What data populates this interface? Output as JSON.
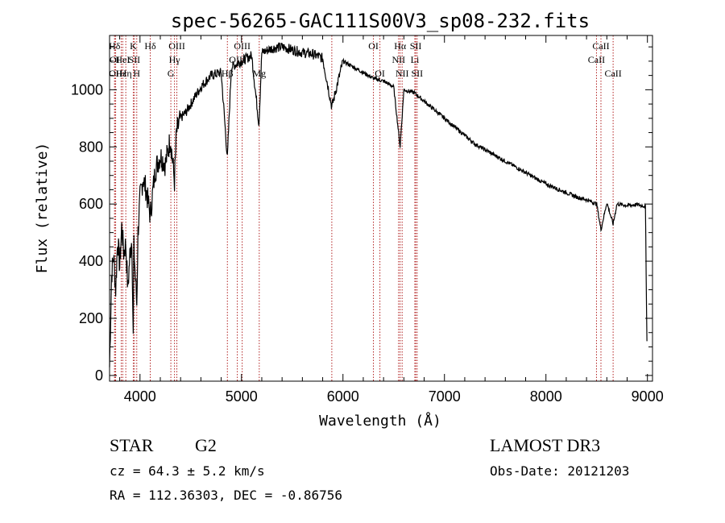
{
  "chart_data": {
    "type": "line",
    "title": "spec-56265-GAC111S00V3_sp08-232.fits",
    "xlabel": "Wavelength (Å)",
    "ylabel": "Flux (relative)",
    "xlim": [
      3700,
      9050
    ],
    "ylim": [
      -20,
      1190
    ],
    "xticks": [
      4000,
      5000,
      6000,
      7000,
      8000,
      9000
    ],
    "yticks": [
      0,
      200,
      400,
      600,
      800,
      1000
    ],
    "xtick_labels": [
      "4000",
      "5000",
      "6000",
      "7000",
      "8000",
      "9000"
    ],
    "ytick_labels": [
      "0",
      "200",
      "400",
      "600",
      "800",
      "1000"
    ],
    "line_color": "#000000",
    "marker_color": "#b22222",
    "spectrum": {
      "wavelength": [
        3700,
        3720,
        3740,
        3760,
        3780,
        3800,
        3820,
        3840,
        3860,
        3880,
        3900,
        3920,
        3933,
        3940,
        3968,
        3980,
        4000,
        4030,
        4060,
        4101,
        4150,
        4200,
        4250,
        4300,
        4340,
        4360,
        4400,
        4450,
        4500,
        4600,
        4700,
        4800,
        4861,
        4900,
        5000,
        5100,
        5172,
        5200,
        5300,
        5400,
        5500,
        5600,
        5700,
        5800,
        5890,
        6000,
        6100,
        6200,
        6300,
        6400,
        6500,
        6563,
        6600,
        6700,
        6800,
        6900,
        7000,
        7100,
        7200,
        7300,
        7400,
        7500,
        7600,
        7700,
        7800,
        7900,
        8000,
        8100,
        8200,
        8300,
        8400,
        8500,
        8542,
        8600,
        8662,
        8700,
        8800,
        8900,
        8980,
        8995
      ],
      "flux": [
        30,
        350,
        420,
        300,
        480,
        380,
        520,
        430,
        460,
        300,
        420,
        480,
        130,
        450,
        250,
        500,
        620,
        690,
        650,
        560,
        720,
        770,
        740,
        830,
        680,
        850,
        900,
        920,
        950,
        1010,
        1050,
        1060,
        760,
        1080,
        1100,
        1120,
        880,
        1130,
        1145,
        1150,
        1140,
        1130,
        1125,
        1110,
        940,
        1100,
        1080,
        1060,
        1040,
        1030,
        1010,
        800,
        1000,
        990,
        960,
        930,
        900,
        870,
        840,
        810,
        790,
        770,
        750,
        730,
        710,
        690,
        670,
        655,
        640,
        625,
        615,
        600,
        510,
        605,
        530,
        600,
        595,
        598,
        592,
        120
      ]
    },
    "line_markers": [
      {
        "label": "Hδ",
        "x": 3750,
        "row": 1
      },
      {
        "label": "OI",
        "x": 3750,
        "row": 2
      },
      {
        "label": "OII",
        "x": 3760,
        "row": 3
      },
      {
        "label": "Hε",
        "x": 3815,
        "row": 3
      },
      {
        "label": "Hη",
        "x": 3860,
        "row": 3
      },
      {
        "label": "HeI",
        "x": 3830,
        "row": 2
      },
      {
        "label": "K",
        "x": 3934,
        "row": 1
      },
      {
        "label": "SII",
        "x": 3945,
        "row": 2
      },
      {
        "label": "H",
        "x": 3968,
        "row": 3
      },
      {
        "label": "Hδ",
        "x": 4101,
        "row": 1
      },
      {
        "label": "OIII",
        "x": 4363,
        "row": 1
      },
      {
        "label": "Hγ",
        "x": 4340,
        "row": 2
      },
      {
        "label": "G",
        "x": 4304,
        "row": 3
      },
      {
        "label": "OIII",
        "x": 5007,
        "row": 1
      },
      {
        "label": "OIII",
        "x": 4959,
        "row": 2
      },
      {
        "label": "Hβ",
        "x": 4861,
        "row": 3
      },
      {
        "label": "Mg",
        "x": 5175,
        "row": 3
      },
      {
        "label": "OI",
        "x": 6300,
        "row": 1
      },
      {
        "label": "OI",
        "x": 6364,
        "row": 3
      },
      {
        "label": "Hα",
        "x": 6563,
        "row": 1
      },
      {
        "label": "NII",
        "x": 6548,
        "row": 2
      },
      {
        "label": "NII",
        "x": 6583,
        "row": 3
      },
      {
        "label": "SII",
        "x": 6717,
        "row": 1
      },
      {
        "label": "Li",
        "x": 6708,
        "row": 2
      },
      {
        "label": "SII",
        "x": 6731,
        "row": 3
      },
      {
        "label": "CaII",
        "x": 8542,
        "row": 1
      },
      {
        "label": "CaII",
        "x": 8498,
        "row": 2
      },
      {
        "label": "CaII",
        "x": 8662,
        "row": 3
      },
      {
        "label": "",
        "x": 5890,
        "row": 0
      }
    ]
  },
  "info": {
    "class_label": "STAR",
    "subclass": "G2",
    "survey": "LAMOST DR3",
    "cz_text": "cz = 64.3 ± 5.2 km/s",
    "obs_date": "Obs-Date: 20121203",
    "radec_text": "RA = 112.36303, DEC =  -0.86756"
  }
}
